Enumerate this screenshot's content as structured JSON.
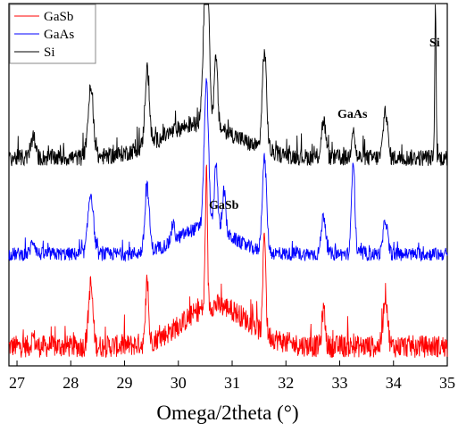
{
  "chart_data": {
    "type": "line",
    "xlabel": "Omega/2theta (°)",
    "ylabel": "",
    "xlim": [
      26.85,
      35.0
    ],
    "x_ticks": [
      "27",
      "28",
      "29",
      "30",
      "31",
      "32",
      "33",
      "34",
      "35"
    ],
    "legend": {
      "placement": "top-left"
    },
    "grid": false,
    "annotations": [
      {
        "text": "Si",
        "x": 34.78,
        "series": "Si"
      },
      {
        "text": "GaAs",
        "x": 33.25,
        "series": "GaAs"
      },
      {
        "text": "GaSb",
        "x": 30.52,
        "series": "GaSb"
      }
    ],
    "series": [
      {
        "name": "GaSb",
        "color": "#ff0000",
        "baseline": 0.08,
        "noise": 0.06,
        "peaks": [
          {
            "x": 27.3,
            "h": 0.05,
            "w": 0.03
          },
          {
            "x": 28.37,
            "h": 0.33,
            "w": 0.04
          },
          {
            "x": 29.42,
            "h": 0.33,
            "w": 0.025
          },
          {
            "x": 30.52,
            "h": 0.7,
            "w": 0.02
          },
          {
            "x": 31.6,
            "h": 0.56,
            "w": 0.025
          },
          {
            "x": 32.7,
            "h": 0.2,
            "w": 0.03
          },
          {
            "x": 33.85,
            "h": 0.28,
            "w": 0.04
          }
        ],
        "hump": {
          "x": 30.7,
          "h": 0.22,
          "w": 0.6
        }
      },
      {
        "name": "GaAs",
        "color": "#0000ff",
        "baseline": 0.08,
        "noise": 0.04,
        "peaks": [
          {
            "x": 27.3,
            "h": 0.08,
            "w": 0.04
          },
          {
            "x": 28.37,
            "h": 0.36,
            "w": 0.05
          },
          {
            "x": 29.42,
            "h": 0.38,
            "w": 0.04
          },
          {
            "x": 29.9,
            "h": 0.1,
            "w": 0.03
          },
          {
            "x": 30.52,
            "h": 0.85,
            "w": 0.04
          },
          {
            "x": 30.7,
            "h": 0.4,
            "w": 0.03
          },
          {
            "x": 30.85,
            "h": 0.25,
            "w": 0.03
          },
          {
            "x": 31.6,
            "h": 0.55,
            "w": 0.04
          },
          {
            "x": 32.7,
            "h": 0.23,
            "w": 0.04
          },
          {
            "x": 33.25,
            "h": 0.57,
            "w": 0.03
          },
          {
            "x": 33.85,
            "h": 0.2,
            "w": 0.04
          }
        ],
        "hump": {
          "x": 30.5,
          "h": 0.16,
          "w": 0.5
        }
      },
      {
        "name": "Si",
        "color": "#000000",
        "baseline": 0.08,
        "noise": 0.05,
        "peaks": [
          {
            "x": 27.3,
            "h": 0.12,
            "w": 0.04
          },
          {
            "x": 28.37,
            "h": 0.4,
            "w": 0.05
          },
          {
            "x": 29.42,
            "h": 0.45,
            "w": 0.04
          },
          {
            "x": 30.52,
            "h": 0.98,
            "w": 0.05
          },
          {
            "x": 30.7,
            "h": 0.4,
            "w": 0.03
          },
          {
            "x": 31.6,
            "h": 0.58,
            "w": 0.04
          },
          {
            "x": 32.7,
            "h": 0.22,
            "w": 0.04
          },
          {
            "x": 33.25,
            "h": 0.18,
            "w": 0.03
          },
          {
            "x": 33.85,
            "h": 0.28,
            "w": 0.04
          },
          {
            "x": 34.78,
            "h": 0.92,
            "w": 0.012
          }
        ],
        "hump": {
          "x": 30.4,
          "h": 0.2,
          "w": 0.7
        }
      }
    ]
  }
}
